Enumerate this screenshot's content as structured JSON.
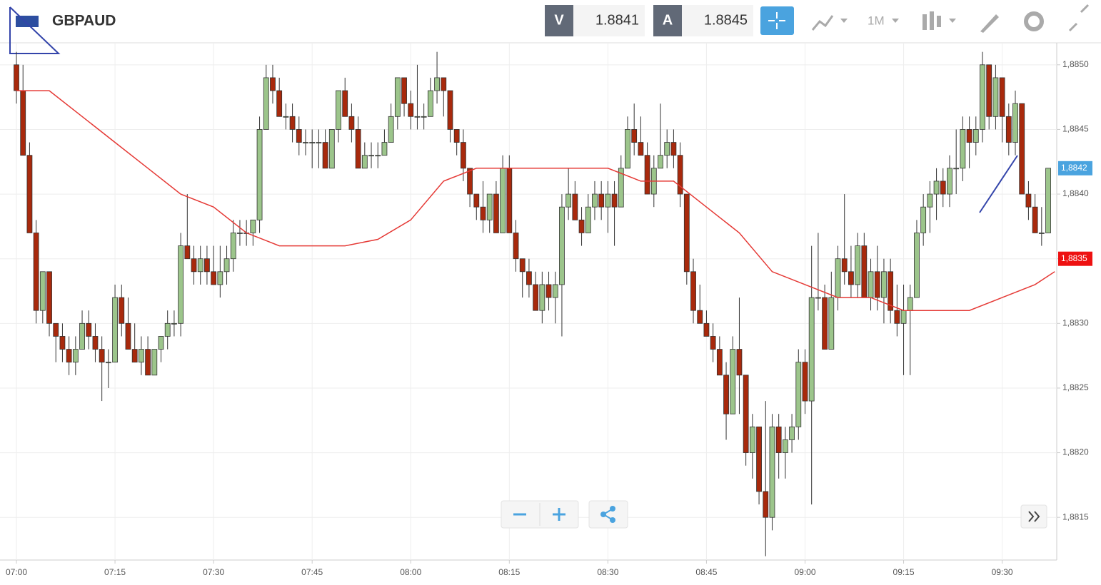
{
  "header": {
    "symbol": "GBPAUD",
    "bid_label": "V",
    "bid": "1.8841",
    "ask_label": "A",
    "ask": "1.8845",
    "timeframe": "1M"
  },
  "chart_data": {
    "type": "candlestick",
    "up_color": "#9cc58b",
    "down_color": "#a8290c",
    "grid": true,
    "xlim": [
      -2.5,
      158.3
    ],
    "ylim": [
      1.88117,
      1.88517
    ],
    "xticks": [
      {
        "value": 0,
        "label": "07:00"
      },
      {
        "value": 15,
        "label": "07:15"
      },
      {
        "value": 30,
        "label": "07:30"
      },
      {
        "value": 45,
        "label": "07:45"
      },
      {
        "value": 60,
        "label": "08:00"
      },
      {
        "value": 75,
        "label": "08:15"
      },
      {
        "value": 90,
        "label": "08:30"
      },
      {
        "value": 105,
        "label": "08:45"
      },
      {
        "value": 120,
        "label": "09:00"
      },
      {
        "value": 135,
        "label": "09:15"
      },
      {
        "value": 150,
        "label": "09:30"
      }
    ],
    "yticks": [
      {
        "value": 1.8815,
        "label": "1,8815"
      },
      {
        "value": 1.882,
        "label": "1,8820"
      },
      {
        "value": 1.8825,
        "label": "1,8825"
      },
      {
        "value": 1.883,
        "label": "1,8830"
      },
      {
        "value": 1.8835,
        "label": "1,8835"
      },
      {
        "value": 1.884,
        "label": "1,8840"
      },
      {
        "value": 1.8845,
        "label": "1,8845"
      },
      {
        "value": 1.885,
        "label": "1,8850"
      }
    ],
    "ohlc": [
      [
        1.885,
        1.8851,
        1.8847,
        1.8848
      ],
      [
        1.8848,
        1.885,
        1.8843,
        1.8843
      ],
      [
        1.8843,
        1.8844,
        1.8837,
        1.8837
      ],
      [
        1.8837,
        1.8838,
        1.883,
        1.8831
      ],
      [
        1.8831,
        1.8834,
        1.883,
        1.8834
      ],
      [
        1.8834,
        1.8834,
        1.8829,
        1.883
      ],
      [
        1.883,
        1.883,
        1.8827,
        1.8829
      ],
      [
        1.8829,
        1.883,
        1.8827,
        1.8828
      ],
      [
        1.8828,
        1.8829,
        1.8826,
        1.8827
      ],
      [
        1.8827,
        1.8829,
        1.8826,
        1.8828
      ],
      [
        1.8828,
        1.8831,
        1.8828,
        1.883
      ],
      [
        1.883,
        1.8831,
        1.8828,
        1.8829
      ],
      [
        1.8829,
        1.883,
        1.8827,
        1.8828
      ],
      [
        1.8828,
        1.8829,
        1.8824,
        1.8827
      ],
      [
        1.8827,
        1.8828,
        1.8825,
        1.8827
      ],
      [
        1.8827,
        1.8833,
        1.8827,
        1.8832
      ],
      [
        1.8832,
        1.8833,
        1.8829,
        1.883
      ],
      [
        1.883,
        1.8832,
        1.8828,
        1.8828
      ],
      [
        1.8828,
        1.883,
        1.8827,
        1.8827
      ],
      [
        1.8827,
        1.8829,
        1.8826,
        1.8828
      ],
      [
        1.8828,
        1.8829,
        1.8826,
        1.8826
      ],
      [
        1.8826,
        1.8828,
        1.8826,
        1.8828
      ],
      [
        1.8828,
        1.8829,
        1.8827,
        1.8829
      ],
      [
        1.8829,
        1.8831,
        1.8828,
        1.883
      ],
      [
        1.883,
        1.8831,
        1.8829,
        1.883
      ],
      [
        1.883,
        1.8837,
        1.8829,
        1.8836
      ],
      [
        1.8836,
        1.884,
        1.8835,
        1.8835
      ],
      [
        1.8835,
        1.8836,
        1.8833,
        1.8834
      ],
      [
        1.8834,
        1.8836,
        1.8833,
        1.8835
      ],
      [
        1.8835,
        1.8836,
        1.8833,
        1.8834
      ],
      [
        1.8834,
        1.8836,
        1.8833,
        1.8833
      ],
      [
        1.8833,
        1.8836,
        1.8832,
        1.8834
      ],
      [
        1.8834,
        1.8836,
        1.8833,
        1.8835
      ],
      [
        1.8835,
        1.8838,
        1.8834,
        1.8837
      ],
      [
        1.8837,
        1.8838,
        1.8836,
        1.8837
      ],
      [
        1.8837,
        1.8838,
        1.8836,
        1.8837
      ],
      [
        1.8837,
        1.8838,
        1.8836,
        1.8838
      ],
      [
        1.8838,
        1.8846,
        1.8837,
        1.8845
      ],
      [
        1.8845,
        1.885,
        1.8845,
        1.8849
      ],
      [
        1.8849,
        1.885,
        1.8847,
        1.8848
      ],
      [
        1.8848,
        1.8849,
        1.8846,
        1.8846
      ],
      [
        1.8846,
        1.8847,
        1.8845,
        1.8846
      ],
      [
        1.8846,
        1.8847,
        1.8844,
        1.8845
      ],
      [
        1.8845,
        1.8846,
        1.8843,
        1.8844
      ],
      [
        1.8844,
        1.8845,
        1.8843,
        1.8844
      ],
      [
        1.8844,
        1.8845,
        1.8842,
        1.8844
      ],
      [
        1.8844,
        1.8845,
        1.8842,
        1.8844
      ],
      [
        1.8844,
        1.8845,
        1.8842,
        1.8842
      ],
      [
        1.8842,
        1.8845,
        1.8842,
        1.8845
      ],
      [
        1.8845,
        1.8848,
        1.8844,
        1.8848
      ],
      [
        1.8848,
        1.8849,
        1.8846,
        1.8846
      ],
      [
        1.8846,
        1.8847,
        1.8844,
        1.8845
      ],
      [
        1.8845,
        1.8846,
        1.8842,
        1.8842
      ],
      [
        1.8842,
        1.8844,
        1.8842,
        1.8843
      ],
      [
        1.8843,
        1.8844,
        1.8842,
        1.8843
      ],
      [
        1.8843,
        1.8844,
        1.8842,
        1.8843
      ],
      [
        1.8843,
        1.8845,
        1.8843,
        1.8844
      ],
      [
        1.8844,
        1.8847,
        1.8844,
        1.8846
      ],
      [
        1.8846,
        1.8849,
        1.8845,
        1.8849
      ],
      [
        1.8849,
        1.8849,
        1.8846,
        1.8847
      ],
      [
        1.8847,
        1.8848,
        1.8845,
        1.8846
      ],
      [
        1.8846,
        1.885,
        1.8845,
        1.8846
      ],
      [
        1.8846,
        1.8847,
        1.8845,
        1.8846
      ],
      [
        1.8846,
        1.8849,
        1.8846,
        1.8848
      ],
      [
        1.8848,
        1.8851,
        1.8847,
        1.8849
      ],
      [
        1.8849,
        1.8849,
        1.8846,
        1.8848
      ],
      [
        1.8848,
        1.8848,
        1.8844,
        1.8845
      ],
      [
        1.8845,
        1.8845,
        1.8843,
        1.8844
      ],
      [
        1.8844,
        1.8845,
        1.8841,
        1.8842
      ],
      [
        1.8842,
        1.8842,
        1.8839,
        1.884
      ],
      [
        1.884,
        1.884,
        1.8838,
        1.8839
      ],
      [
        1.8839,
        1.8841,
        1.8837,
        1.8838
      ],
      [
        1.8838,
        1.884,
        1.8837,
        1.884
      ],
      [
        1.884,
        1.8841,
        1.8837,
        1.8837
      ],
      [
        1.8837,
        1.8843,
        1.8837,
        1.8842
      ],
      [
        1.8842,
        1.8843,
        1.8837,
        1.8837
      ],
      [
        1.8837,
        1.8838,
        1.8834,
        1.8835
      ],
      [
        1.8835,
        1.8835,
        1.8832,
        1.8834
      ],
      [
        1.8834,
        1.8835,
        1.8832,
        1.8833
      ],
      [
        1.8833,
        1.8834,
        1.8831,
        1.8831
      ],
      [
        1.8831,
        1.8834,
        1.883,
        1.8833
      ],
      [
        1.8833,
        1.8834,
        1.8831,
        1.8832
      ],
      [
        1.8832,
        1.8834,
        1.883,
        1.8833
      ],
      [
        1.8833,
        1.884,
        1.8829,
        1.8839
      ],
      [
        1.8839,
        1.8842,
        1.8838,
        1.884
      ],
      [
        1.884,
        1.8841,
        1.8838,
        1.8838
      ],
      [
        1.8838,
        1.8839,
        1.8836,
        1.8837
      ],
      [
        1.8837,
        1.884,
        1.8837,
        1.8839
      ],
      [
        1.8839,
        1.8841,
        1.8838,
        1.884
      ],
      [
        1.884,
        1.8841,
        1.8838,
        1.8839
      ],
      [
        1.8839,
        1.8841,
        1.8837,
        1.884
      ],
      [
        1.884,
        1.8841,
        1.8836,
        1.8839
      ],
      [
        1.8839,
        1.8843,
        1.8839,
        1.8842
      ],
      [
        1.8842,
        1.8846,
        1.8842,
        1.8845
      ],
      [
        1.8845,
        1.8847,
        1.8843,
        1.8844
      ],
      [
        1.8844,
        1.8846,
        1.8843,
        1.8843
      ],
      [
        1.8843,
        1.8844,
        1.884,
        1.884
      ],
      [
        1.884,
        1.8843,
        1.8839,
        1.8842
      ],
      [
        1.8842,
        1.8847,
        1.8842,
        1.8843
      ],
      [
        1.8843,
        1.8845,
        1.8842,
        1.8844
      ],
      [
        1.8844,
        1.8845,
        1.8842,
        1.8843
      ],
      [
        1.8843,
        1.8844,
        1.8839,
        1.884
      ],
      [
        1.884,
        1.884,
        1.8833,
        1.8834
      ],
      [
        1.8834,
        1.8835,
        1.883,
        1.8831
      ],
      [
        1.8831,
        1.8833,
        1.883,
        1.883
      ],
      [
        1.883,
        1.8831,
        1.8829,
        1.8829
      ],
      [
        1.8829,
        1.883,
        1.8827,
        1.8828
      ],
      [
        1.8828,
        1.8829,
        1.8826,
        1.8826
      ],
      [
        1.8826,
        1.8827,
        1.8821,
        1.8823
      ],
      [
        1.8823,
        1.8829,
        1.8823,
        1.8828
      ],
      [
        1.8828,
        1.8832,
        1.8823,
        1.8826
      ],
      [
        1.8826,
        1.8826,
        1.8819,
        1.882
      ],
      [
        1.882,
        1.8823,
        1.8818,
        1.8822
      ],
      [
        1.8822,
        1.8822,
        1.8816,
        1.8817
      ],
      [
        1.8817,
        1.8824,
        1.8812,
        1.8815
      ],
      [
        1.8815,
        1.8823,
        1.8814,
        1.8822
      ],
      [
        1.8822,
        1.8823,
        1.8818,
        1.882
      ],
      [
        1.882,
        1.8822,
        1.8818,
        1.8821
      ],
      [
        1.8821,
        1.8823,
        1.882,
        1.8822
      ],
      [
        1.8822,
        1.8828,
        1.8821,
        1.8827
      ],
      [
        1.8827,
        1.8828,
        1.8823,
        1.8824
      ],
      [
        1.8824,
        1.8836,
        1.8816,
        1.8832
      ],
      [
        1.8832,
        1.8837,
        1.8831,
        1.8832
      ],
      [
        1.8832,
        1.8833,
        1.8828,
        1.8828
      ],
      [
        1.8828,
        1.8834,
        1.8828,
        1.8832
      ],
      [
        1.8832,
        1.8836,
        1.8831,
        1.8835
      ],
      [
        1.8835,
        1.884,
        1.8833,
        1.8834
      ],
      [
        1.8834,
        1.8836,
        1.8832,
        1.8833
      ],
      [
        1.8833,
        1.8837,
        1.8832,
        1.8836
      ],
      [
        1.8836,
        1.8837,
        1.8832,
        1.8832
      ],
      [
        1.8832,
        1.8835,
        1.8831,
        1.8834
      ],
      [
        1.8834,
        1.8836,
        1.8831,
        1.8832
      ],
      [
        1.8832,
        1.8835,
        1.883,
        1.8834
      ],
      [
        1.8834,
        1.8835,
        1.883,
        1.8831
      ],
      [
        1.8831,
        1.8833,
        1.8829,
        1.883
      ],
      [
        1.883,
        1.8833,
        1.8826,
        1.8831
      ],
      [
        1.8831,
        1.8833,
        1.8826,
        1.8832
      ],
      [
        1.8832,
        1.8838,
        1.8832,
        1.8837
      ],
      [
        1.8837,
        1.884,
        1.8836,
        1.8839
      ],
      [
        1.8839,
        1.8841,
        1.8837,
        1.884
      ],
      [
        1.884,
        1.8842,
        1.8838,
        1.8841
      ],
      [
        1.8841,
        1.8842,
        1.8839,
        1.884
      ],
      [
        1.884,
        1.8843,
        1.8839,
        1.8842
      ],
      [
        1.8842,
        1.8845,
        1.884,
        1.8842
      ],
      [
        1.8842,
        1.8846,
        1.8841,
        1.8845
      ],
      [
        1.8845,
        1.8846,
        1.8842,
        1.8844
      ],
      [
        1.8844,
        1.8846,
        1.8843,
        1.8845
      ],
      [
        1.8845,
        1.8851,
        1.8844,
        1.885
      ],
      [
        1.885,
        1.885,
        1.8845,
        1.8846
      ],
      [
        1.8846,
        1.885,
        1.8845,
        1.8849
      ],
      [
        1.8849,
        1.8849,
        1.8844,
        1.8846
      ],
      [
        1.8846,
        1.8847,
        1.8843,
        1.8844
      ],
      [
        1.8844,
        1.8848,
        1.8843,
        1.8847
      ],
      [
        1.8847,
        1.8847,
        1.884,
        1.884
      ],
      [
        1.884,
        1.8841,
        1.8838,
        1.8839
      ],
      [
        1.8839,
        1.884,
        1.8837,
        1.8837
      ],
      [
        1.8837,
        1.8839,
        1.8836,
        1.8837
      ],
      [
        1.8837,
        1.8842,
        1.8837,
        1.8842
      ]
    ],
    "ma": {
      "color": "#e53935",
      "x": [
        0,
        5,
        10,
        15,
        20,
        25,
        30,
        35,
        40,
        45,
        50,
        55,
        60,
        65,
        70,
        75,
        80,
        85,
        90,
        95,
        100,
        105,
        110,
        115,
        120,
        125,
        130,
        135,
        140,
        145,
        150,
        155,
        158
      ],
      "values": [
        1.8848,
        1.8848,
        1.8846,
        1.8844,
        1.8842,
        1.884,
        1.8839,
        1.8837,
        1.8836,
        1.8836,
        1.8836,
        1.88365,
        1.8838,
        1.8841,
        1.8842,
        1.8842,
        1.8842,
        1.8842,
        1.8842,
        1.8841,
        1.8841,
        1.8839,
        1.8837,
        1.8834,
        1.8833,
        1.8832,
        1.8832,
        1.8831,
        1.8831,
        1.8831,
        1.8832,
        1.8833,
        1.8834
      ]
    },
    "price_tags": [
      {
        "value": 1.8842,
        "label": "1,8842",
        "color": "#4aa3df"
      },
      {
        "value": 1.8835,
        "label": "1,8835",
        "color": "#ee1111"
      }
    ]
  }
}
